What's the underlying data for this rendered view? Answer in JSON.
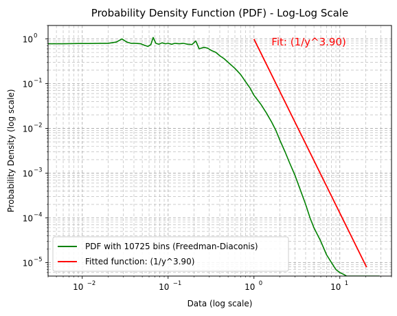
{
  "chart_data": {
    "type": "line",
    "title": "Probability Density Function (PDF) - Log-Log Scale",
    "xlabel": "Data (log scale)",
    "ylabel": "Probability Density (log scale)",
    "xscale": "log",
    "yscale": "log",
    "xlim": [
      0.004,
      40
    ],
    "ylim": [
      5e-06,
      2
    ],
    "grid": true,
    "legend_position": "lower-left",
    "x_ticks": [
      {
        "value": 0.01,
        "base": "10",
        "exp": "−2"
      },
      {
        "value": 0.1,
        "base": "10",
        "exp": "−1"
      },
      {
        "value": 1,
        "base": "10",
        "exp": "0"
      },
      {
        "value": 10,
        "base": "10",
        "exp": "1"
      }
    ],
    "y_ticks": [
      {
        "value": 1e-05,
        "base": "10",
        "exp": "−5"
      },
      {
        "value": 0.0001,
        "base": "10",
        "exp": "−4"
      },
      {
        "value": 0.001,
        "base": "10",
        "exp": "−3"
      },
      {
        "value": 0.01,
        "base": "10",
        "exp": "−2"
      },
      {
        "value": 0.1,
        "base": "10",
        "exp": "−1"
      },
      {
        "value": 1,
        "base": "10",
        "exp": "0"
      }
    ],
    "annotation": {
      "text": "Fit: (1/y^3.90)",
      "x": 1.6,
      "y": 0.72,
      "color": "#ff0000"
    },
    "series": [
      {
        "name": "PDF with 10725 bins (Freedman-Diaconis)",
        "color": "#008000",
        "x": [
          0.004,
          0.006,
          0.009,
          0.012,
          0.016,
          0.02,
          0.025,
          0.029,
          0.033,
          0.037,
          0.042,
          0.048,
          0.053,
          0.058,
          0.063,
          0.067,
          0.072,
          0.078,
          0.085,
          0.093,
          0.1,
          0.11,
          0.12,
          0.135,
          0.15,
          0.17,
          0.19,
          0.21,
          0.23,
          0.26,
          0.29,
          0.32,
          0.36,
          0.4,
          0.45,
          0.5,
          0.6,
          0.7,
          0.8,
          0.9,
          1.0,
          1.2,
          1.4,
          1.6,
          1.8,
          2.0,
          2.3,
          2.6,
          3.0,
          3.5,
          4.0,
          4.5,
          5.0,
          6.0,
          7.0,
          8.0,
          9.0,
          10,
          11,
          12,
          14,
          16,
          18,
          20,
          23,
          26,
          29
        ],
        "values": [
          0.78,
          0.78,
          0.79,
          0.79,
          0.8,
          0.8,
          0.85,
          1.0,
          0.85,
          0.8,
          0.8,
          0.78,
          0.72,
          0.68,
          0.75,
          1.08,
          0.8,
          0.76,
          0.82,
          0.78,
          0.8,
          0.76,
          0.8,
          0.78,
          0.8,
          0.76,
          0.75,
          0.9,
          0.6,
          0.65,
          0.62,
          0.55,
          0.5,
          0.42,
          0.36,
          0.3,
          0.22,
          0.16,
          0.11,
          0.08,
          0.055,
          0.035,
          0.022,
          0.014,
          0.009,
          0.0055,
          0.003,
          0.0017,
          0.0009,
          0.0004,
          0.0002,
          0.0001,
          6e-05,
          3e-05,
          1.5e-05,
          1e-05,
          7e-06,
          6e-06,
          5.5e-06,
          5e-06,
          5e-06,
          5e-06,
          5e-06,
          5e-06,
          5e-06,
          5e-06,
          5e-06
        ]
      },
      {
        "name": "Fitted function: (1/y^3.90)",
        "color": "#ff0000",
        "x": [
          1.0,
          20.5
        ],
        "values": [
          1.0,
          7.9e-06
        ]
      }
    ]
  }
}
